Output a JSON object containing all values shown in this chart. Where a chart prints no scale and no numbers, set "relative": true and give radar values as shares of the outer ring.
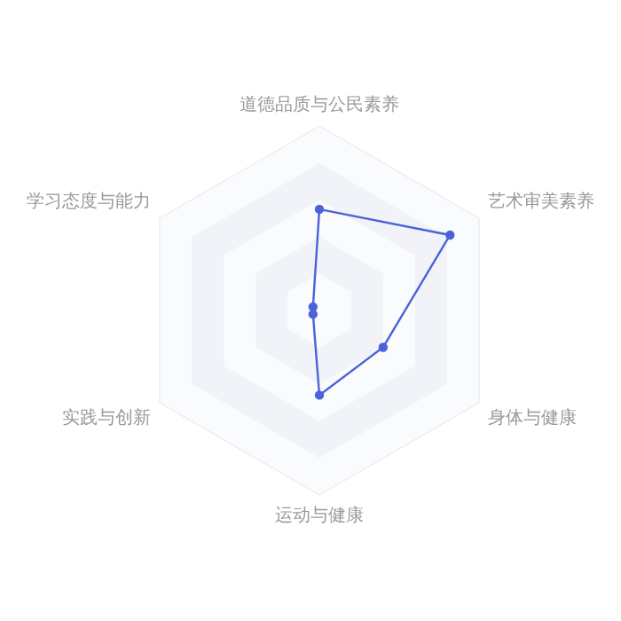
{
  "chart_data": {
    "type": "radar",
    "relative": true,
    "categories": [
      "道德品质与公民素养",
      "艺术审美素养",
      "身体与健康",
      "运动与健康",
      "实践与创新",
      "学习态度与能力"
    ],
    "series": [
      {
        "color": "#4a63d8",
        "values": [
          0.55,
          0.82,
          0.4,
          0.46,
          0.04,
          0.04
        ]
      }
    ],
    "marker": "circle",
    "grid": true,
    "legend": false
  }
}
